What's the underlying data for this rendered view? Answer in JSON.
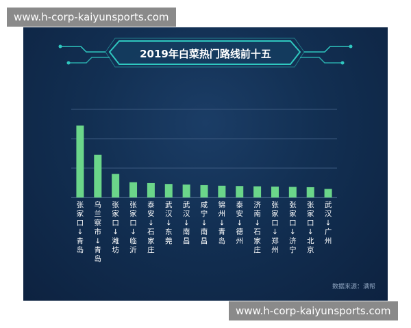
{
  "watermarks": {
    "top": "www.h-corp-kaiyunsports.com",
    "bottom": "www.h-corp-kaiyunsports.com"
  },
  "colors": {
    "background": "#122f52",
    "bar": "#6bd68a",
    "title_frame": "#2fc8c0",
    "text": "#ffffff"
  },
  "chart_data": {
    "type": "bar",
    "title": "2019年白菜热门路线前十五",
    "source": "数据来源：满帮",
    "categories": [
      "张家口↓青岛",
      "乌兰察市↓青岛",
      "张家口↓潍坊",
      "张家口↓临沂",
      "泰安↓石家庄",
      "武汉↓东莞",
      "武汉↓南昌",
      "咸宁↓南昌",
      "锦州↓青岛",
      "泰安↓德州",
      "济南↓石家庄",
      "张家口↓郑州",
      "张家口↓济宁",
      "张家口↓北京",
      "武汉↓广州"
    ],
    "values": [
      24.5,
      14.5,
      8.0,
      5.2,
      4.9,
      4.6,
      4.4,
      4.2,
      4.0,
      3.9,
      3.8,
      3.7,
      3.6,
      3.5,
      2.9
    ],
    "ylim": [
      0,
      30
    ],
    "grid": true,
    "legend": "none",
    "axis_labels_visible": false
  }
}
